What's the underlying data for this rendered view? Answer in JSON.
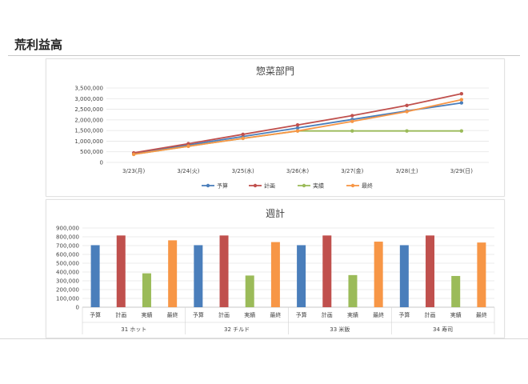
{
  "page": {
    "title": "荒利益高"
  },
  "colors": {
    "yosan": "#4a7ebb",
    "keikaku": "#c0504d",
    "jisseki": "#9bbb59",
    "saishu": "#f79646"
  },
  "chart_data": [
    {
      "type": "line",
      "title": "惣菜部門",
      "x": [
        "3/23(月)",
        "3/24(火)",
        "3/25(水)",
        "3/26(木)",
        "3/27(金)",
        "3/28(土)",
        "3/29(日)"
      ],
      "ylim": [
        0,
        3500000
      ],
      "yticks": [
        "0",
        "500,000",
        "1,000,000",
        "1,500,000",
        "2,000,000",
        "2,500,000",
        "3,000,000",
        "3,500,000"
      ],
      "grid": true,
      "legend": "bottom",
      "series": [
        {
          "name": "予算",
          "color": "#4a7ebb",
          "values": [
            420000,
            820000,
            1220000,
            1620000,
            2020000,
            2420000,
            2800000
          ]
        },
        {
          "name": "計画",
          "color": "#c0504d",
          "values": [
            450000,
            880000,
            1320000,
            1760000,
            2200000,
            2680000,
            3230000
          ]
        },
        {
          "name": "実績",
          "color": "#9bbb59",
          "values": [
            380000,
            760000,
            1130000,
            1480000,
            1480000,
            1480000,
            1480000
          ]
        },
        {
          "name": "最終",
          "color": "#f79646",
          "values": [
            380000,
            760000,
            1130000,
            1480000,
            1930000,
            2390000,
            2950000
          ]
        }
      ]
    },
    {
      "type": "bar",
      "title": "週計",
      "ylim": [
        0,
        900000
      ],
      "yticks": [
        "0",
        "100,000",
        "200,000",
        "300,000",
        "400,000",
        "500,000",
        "600,000",
        "700,000",
        "800,000",
        "900,000"
      ],
      "grid": true,
      "bar_labels": [
        "予算",
        "計画",
        "実績",
        "最終"
      ],
      "groups": [
        {
          "name": "31 ホット",
          "values": [
            705000,
            815000,
            385000,
            760000
          ]
        },
        {
          "name": "32 チルド",
          "values": [
            705000,
            815000,
            360000,
            740000
          ]
        },
        {
          "name": "33 米飯",
          "values": [
            705000,
            815000,
            365000,
            745000
          ]
        },
        {
          "name": "34 寿司",
          "values": [
            705000,
            815000,
            355000,
            735000
          ]
        }
      ],
      "bar_colors": [
        "#4a7ebb",
        "#c0504d",
        "#9bbb59",
        "#f79646"
      ]
    }
  ]
}
